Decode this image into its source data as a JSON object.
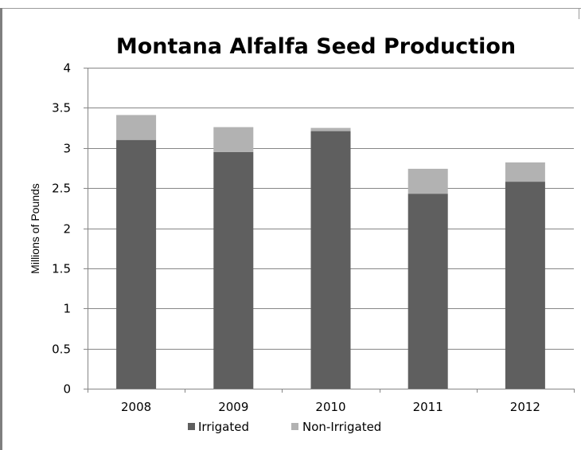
{
  "chart_data": {
    "type": "bar",
    "stacked": true,
    "title": "Montana Alfalfa Seed Production",
    "xlabel": "",
    "ylabel": "Millions of Pounds",
    "categories": [
      "2008",
      "2009",
      "2010",
      "2011",
      "2012"
    ],
    "series": [
      {
        "name": "Irrigated",
        "color": "#5f5f5f",
        "values": [
          3.1,
          2.95,
          3.21,
          2.43,
          2.58
        ]
      },
      {
        "name": "Non-Irrigated",
        "color": "#b2b2b2",
        "values": [
          0.31,
          0.31,
          0.04,
          0.31,
          0.24
        ]
      }
    ],
    "ylim": [
      0,
      4
    ],
    "yticks": [
      "0",
      "0.5",
      "1",
      "1.5",
      "2",
      "2.5",
      "3",
      "3.5",
      "4"
    ],
    "grid": true,
    "legend_position": "bottom",
    "gridline_color": "#868686",
    "axis_color": "#868686"
  }
}
